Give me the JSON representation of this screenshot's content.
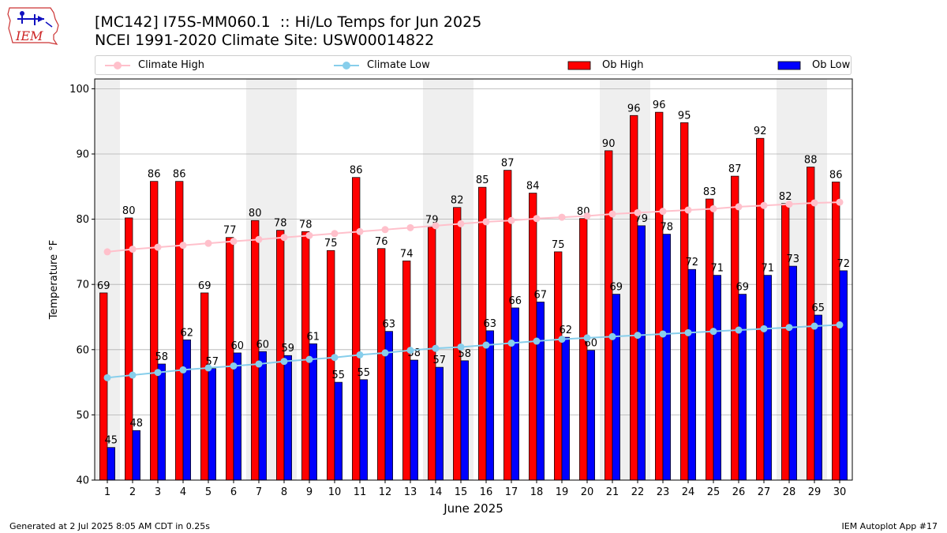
{
  "header": {
    "title_line1": "[MC142] I75S-MM060.1  :: Hi/Lo Temps for Jun 2025",
    "title_line2": "NCEI 1991-2020 Climate Site: USW00014822"
  },
  "logo": {
    "text": "IEM",
    "icon": "iem-iowa-logo"
  },
  "footer": {
    "left": "Generated at 2 Jul 2025 8:05 AM CDT in 0.25s",
    "right": "IEM Autoplot App #17"
  },
  "colors": {
    "ob_high": "#ff0000",
    "ob_low": "#0000ff",
    "climate_high": "#ffc0cb",
    "climate_low": "#87ceeb",
    "weekend_band": "#efefef",
    "grid": "#b0b0b0"
  },
  "chart_data": {
    "type": "bar",
    "xlabel": "June 2025",
    "ylabel": "Temperature °F",
    "ylim": [
      40,
      101.5
    ],
    "yticks": [
      40,
      50,
      60,
      70,
      80,
      90,
      100
    ],
    "grid": "horizontal",
    "legend_position": "top",
    "weekend_bands": [
      1,
      7,
      8,
      14,
      15,
      21,
      22,
      28,
      29
    ],
    "categories": [
      "1",
      "2",
      "3",
      "4",
      "5",
      "6",
      "7",
      "8",
      "9",
      "10",
      "11",
      "12",
      "13",
      "14",
      "15",
      "16",
      "17",
      "18",
      "19",
      "20",
      "21",
      "22",
      "23",
      "24",
      "25",
      "26",
      "27",
      "28",
      "29",
      "30"
    ],
    "series": [
      {
        "name": "Ob High",
        "kind": "bar",
        "values": [
          68.7,
          80.2,
          85.8,
          85.8,
          68.7,
          77.2,
          79.8,
          78.3,
          78.1,
          75.2,
          86.4,
          75.5,
          73.6,
          78.8,
          81.8,
          84.9,
          87.5,
          84.0,
          75.0,
          80.1,
          90.5,
          95.9,
          96.4,
          94.8,
          83.1,
          86.6,
          92.4,
          82.4,
          88.0,
          85.7
        ],
        "labels": [
          "69",
          "80",
          "86",
          "86",
          "69",
          "77",
          "80",
          "78",
          "78",
          "75",
          "86",
          "76",
          "74",
          "79",
          "82",
          "85",
          "87",
          "84",
          "75",
          "80",
          "90",
          "96",
          "96",
          "95",
          "83",
          "87",
          "92",
          "82",
          "88",
          "86"
        ]
      },
      {
        "name": "Ob Low",
        "kind": "bar",
        "values": [
          45.0,
          47.6,
          57.8,
          61.5,
          57.1,
          59.5,
          59.7,
          59.1,
          60.9,
          55.0,
          55.4,
          62.8,
          58.4,
          57.3,
          58.3,
          62.9,
          66.4,
          67.3,
          61.9,
          59.9,
          68.5,
          79.0,
          77.7,
          72.3,
          71.4,
          68.5,
          71.4,
          72.8,
          65.3,
          72.1
        ],
        "labels": [
          "45",
          "48",
          "58",
          "62",
          "57",
          "60",
          "60",
          "59",
          "61",
          "55",
          "55",
          "63",
          "58",
          "57",
          "58",
          "63",
          "66",
          "67",
          "62",
          "60",
          "69",
          "79",
          "78",
          "72",
          "71",
          "69",
          "71",
          "73",
          "65",
          "72"
        ]
      },
      {
        "name": "Climate High",
        "kind": "line",
        "values": [
          75.0,
          75.4,
          75.7,
          76.0,
          76.3,
          76.6,
          76.9,
          77.2,
          77.5,
          77.8,
          78.1,
          78.4,
          78.7,
          79.0,
          79.3,
          79.6,
          79.8,
          80.1,
          80.3,
          80.5,
          80.8,
          81.0,
          81.2,
          81.4,
          81.6,
          81.9,
          82.1,
          82.3,
          82.5,
          82.6
        ]
      },
      {
        "name": "Climate Low",
        "kind": "line",
        "values": [
          55.7,
          56.1,
          56.5,
          56.9,
          57.2,
          57.5,
          57.8,
          58.2,
          58.5,
          58.8,
          59.2,
          59.5,
          59.9,
          60.2,
          60.4,
          60.7,
          61.0,
          61.3,
          61.6,
          61.8,
          62.0,
          62.2,
          62.4,
          62.6,
          62.8,
          63.0,
          63.2,
          63.4,
          63.6,
          63.8
        ]
      }
    ]
  }
}
